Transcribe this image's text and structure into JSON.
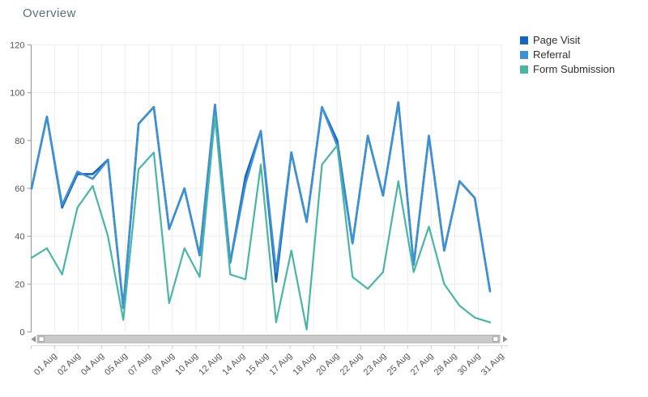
{
  "title": "Overview",
  "chart_data": {
    "type": "line",
    "title": "Overview",
    "categories": [
      "01 Aug",
      "02 Aug",
      "03 Aug",
      "04 Aug",
      "05 Aug",
      "06 Aug",
      "07 Aug",
      "08 Aug",
      "09 Aug",
      "10 Aug",
      "11 Aug",
      "12 Aug",
      "13 Aug",
      "14 Aug",
      "15 Aug",
      "16 Aug",
      "17 Aug",
      "18 Aug",
      "19 Aug",
      "20 Aug",
      "21 Aug",
      "22 Aug",
      "23 Aug",
      "24 Aug",
      "25 Aug",
      "26 Aug",
      "27 Aug",
      "28 Aug",
      "29 Aug",
      "30 Aug",
      "31 Aug"
    ],
    "x_tick_labels": [
      "01 Aug",
      "02 Aug",
      "04 Aug",
      "05 Aug",
      "07 Aug",
      "09 Aug",
      "10 Aug",
      "12 Aug",
      "14 Aug",
      "15 Aug",
      "17 Aug",
      "18 Aug",
      "20 Aug",
      "22 Aug",
      "23 Aug",
      "25 Aug",
      "27 Aug",
      "28 Aug",
      "30 Aug",
      "31 Aug"
    ],
    "y_ticks": [
      0,
      20,
      40,
      60,
      80,
      100,
      120
    ],
    "ylim": [
      0,
      120
    ],
    "grid": true,
    "legend_position": "top-right",
    "series": [
      {
        "name": "Page Visit",
        "color": "#1565c0",
        "values": [
          60,
          90,
          52,
          66,
          66,
          72,
          10,
          87,
          94,
          43,
          60,
          32,
          95,
          29,
          65,
          84,
          21,
          75,
          46,
          94,
          80,
          37,
          82,
          57,
          96,
          28,
          82,
          34,
          63,
          56,
          17
        ]
      },
      {
        "name": "Referral",
        "color": "#3d91d1",
        "values": [
          60,
          90,
          53,
          67,
          64,
          72,
          10,
          87,
          94,
          43,
          60,
          32,
          95,
          29,
          62,
          84,
          25,
          75,
          46,
          94,
          78,
          37,
          82,
          57,
          96,
          28,
          82,
          34,
          63,
          56,
          17
        ]
      },
      {
        "name": "Form Submission",
        "color": "#49b5a5",
        "values": [
          31,
          35,
          24,
          52,
          61,
          40,
          5,
          68,
          75,
          12,
          35,
          23,
          90,
          24,
          22,
          70,
          4,
          34,
          1,
          70,
          78,
          23,
          18,
          25,
          63,
          25,
          44,
          20,
          11,
          6,
          4
        ]
      }
    ]
  },
  "scrollbar": {
    "left_arrow_icon": "left-triangle",
    "right_arrow_icon": "right-triangle"
  }
}
